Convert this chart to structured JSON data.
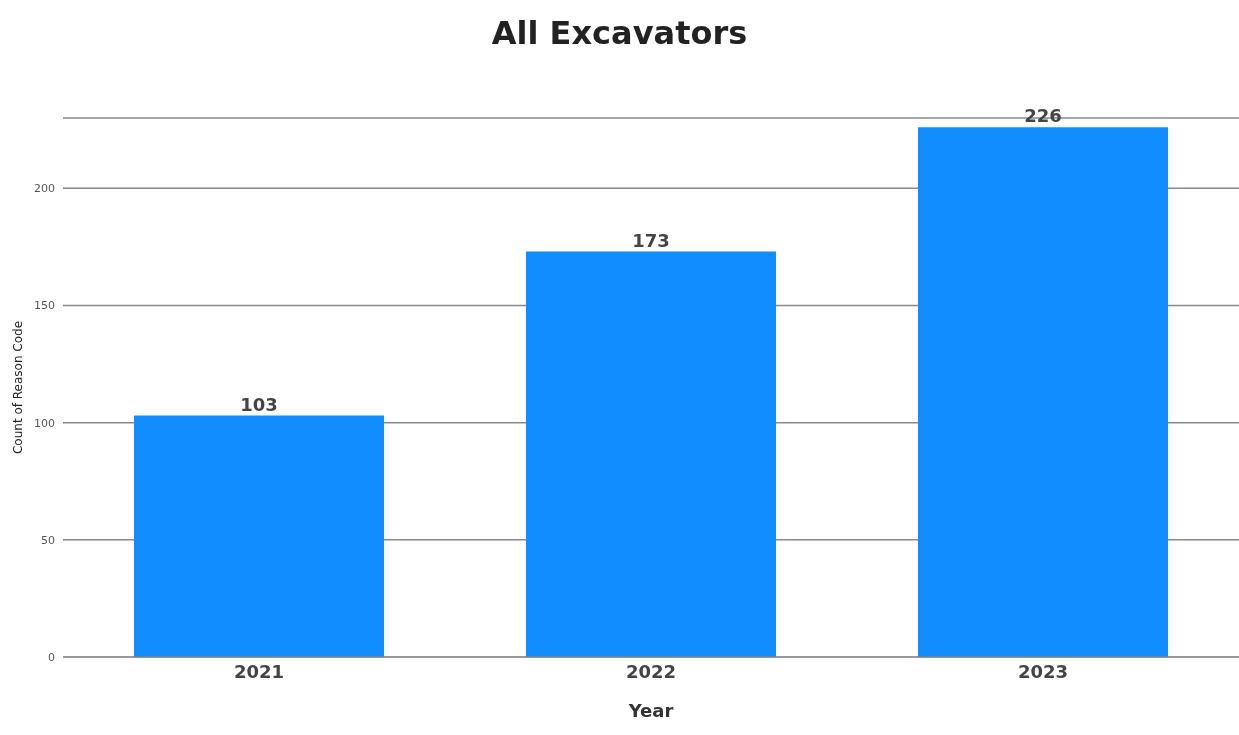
{
  "chart_data": {
    "type": "bar",
    "title": "All Excavators",
    "xlabel": "Year",
    "ylabel": "Count of Reason Code",
    "categories": [
      "2021",
      "2022",
      "2023"
    ],
    "values": [
      103,
      173,
      226
    ],
    "color": "#118dff",
    "ylim": [
      0,
      230
    ],
    "yticks": [
      0,
      50,
      100,
      150,
      200
    ],
    "grid": "y",
    "data_labels": true
  }
}
